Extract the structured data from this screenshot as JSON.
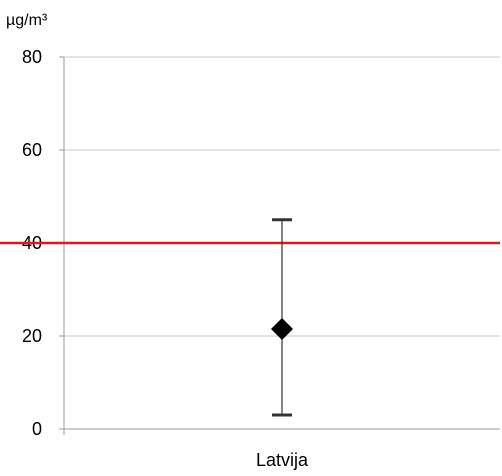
{
  "chart_data": {
    "type": "scatter",
    "title": "",
    "xlabel": "",
    "ylabel": "µg/m³",
    "unit_label": "µg/m³",
    "categories": [
      "Latvija"
    ],
    "ylim": [
      0,
      80
    ],
    "yticks": [
      0,
      20,
      40,
      60,
      80
    ],
    "grid": "horizontal",
    "series": [
      {
        "values": [
          21.5
        ],
        "error_low": [
          3
        ],
        "error_high": [
          45
        ],
        "marker": "diamond",
        "color": "#000000"
      }
    ],
    "reference_lines": [
      {
        "value": 40,
        "color": "#d21e1e"
      }
    ]
  }
}
